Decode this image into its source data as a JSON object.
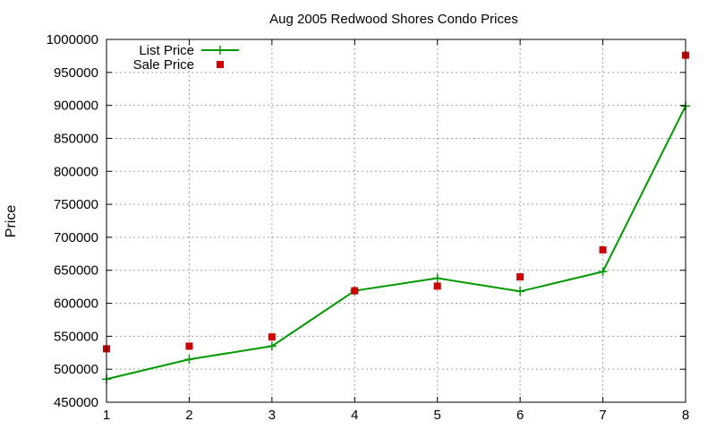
{
  "chart_data": {
    "type": "line",
    "title": "Aug 2005 Redwood Shores Condo Prices",
    "xlabel": "",
    "ylabel": "Price",
    "x": [
      1,
      2,
      3,
      4,
      5,
      6,
      7,
      8
    ],
    "xlim": [
      1,
      8
    ],
    "ylim": [
      450000,
      1000000
    ],
    "xticks": [
      1,
      2,
      3,
      4,
      5,
      6,
      7,
      8
    ],
    "yticks": [
      450000,
      500000,
      550000,
      600000,
      650000,
      700000,
      750000,
      800000,
      850000,
      900000,
      950000,
      1000000
    ],
    "grid": true,
    "legend_position": "top-left",
    "series": [
      {
        "name": "List Price",
        "style": "line-plus",
        "color": "#009900",
        "values": [
          485000,
          515000,
          535000,
          619000,
          638000,
          618000,
          648000,
          899000
        ]
      },
      {
        "name": "Sale Price",
        "style": "square",
        "color": "#cc0000",
        "values": [
          531000,
          535000,
          549000,
          619000,
          626000,
          640000,
          681000,
          976000
        ]
      }
    ]
  }
}
